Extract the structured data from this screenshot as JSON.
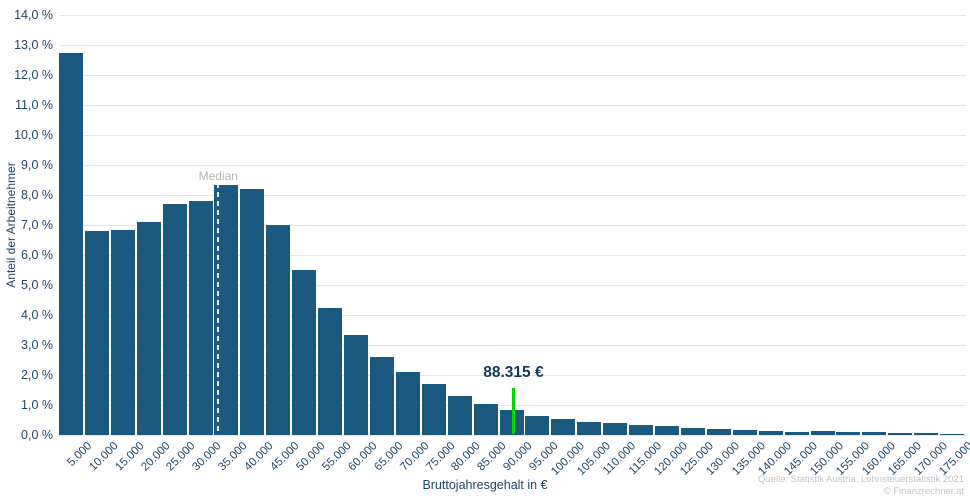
{
  "chart_data": {
    "type": "bar",
    "title": "",
    "xlabel": "Bruttojahresgehalt in €",
    "ylabel": "Anteil der Arbeitnehmer",
    "categories": [
      "5.000",
      "10.000",
      "15.000",
      "20.000",
      "25.000",
      "30.000",
      "35.000",
      "40.000",
      "45.000",
      "50.000",
      "55.000",
      "60.000",
      "65.000",
      "70.000",
      "75.000",
      "80.000",
      "85.000",
      "90.000",
      "95.000",
      "100.000",
      "105.000",
      "110.000",
      "115.000",
      "120.000",
      "125.000",
      "130.000",
      "135.000",
      "140.000",
      "145.000",
      "150.000",
      "155.000",
      "160.000",
      "165.000",
      "170.000",
      "175.000"
    ],
    "values": [
      12.75,
      6.8,
      6.85,
      7.1,
      7.7,
      7.8,
      8.35,
      8.2,
      7.0,
      5.5,
      4.25,
      3.35,
      2.6,
      2.1,
      1.7,
      1.3,
      1.05,
      0.85,
      0.65,
      0.55,
      0.45,
      0.4,
      0.35,
      0.3,
      0.25,
      0.2,
      0.16,
      0.13,
      0.11,
      0.12,
      0.09,
      0.09,
      0.08,
      0.06,
      0.04
    ],
    "ylim": [
      0,
      14
    ],
    "yticks": [
      "14,0 %",
      "13,0 %",
      "12,0 %",
      "11,0 %",
      "10,0 %",
      "9,0 %",
      "8,0 %",
      "7,0 %",
      "6,0 %",
      "5,0 %",
      "4,0 %",
      "3,0 %",
      "2,0 %",
      "1,0 %",
      "0,0 %"
    ],
    "grid": true,
    "legend": null,
    "annotations": {
      "median": {
        "label": "Median",
        "x_frac": 0.1756
      },
      "marker": {
        "label": "88.315 €",
        "x_frac": 0.501
      }
    },
    "colors": {
      "bar": "#1b5a7e",
      "grid": "#e7e7e7",
      "axis_text": "#1f4469",
      "median_text": "#b5b5b5",
      "median_dash": "rgba(255,255,255,0.9)",
      "marker_line": "#00d800",
      "marker_text": "#17375f",
      "footer_text": "#c3c3c3"
    }
  },
  "footer": {
    "source": "Quelle: Statistik Austria, Lohnsteuerstatistik 2021",
    "copyright": "© Finanzrechner.at"
  }
}
